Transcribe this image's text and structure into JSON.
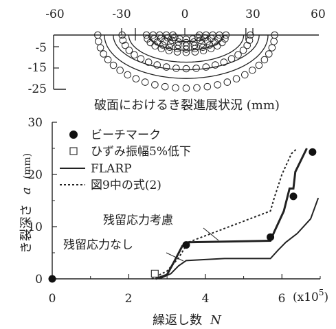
{
  "chart_data": [
    {
      "type": "scatter",
      "xlabel": "",
      "ylabel": "",
      "caption": "破面におけるき裂進展状況 (mm)",
      "xlim": [
        -60,
        60
      ],
      "ylim": [
        -25,
        0
      ],
      "x_ticks": [
        "-60",
        "-30",
        "0",
        "30",
        "60"
      ],
      "y_ticks": [
        "-5",
        "-15",
        "-25"
      ],
      "grid": false,
      "series": [
        {
          "depth": 2,
          "half_width": 6,
          "count": 7
        },
        {
          "depth": 3.5,
          "half_width": 9,
          "count": 9
        },
        {
          "depth": 5,
          "half_width": 12,
          "count": 11
        },
        {
          "depth": 6.5,
          "half_width": 15,
          "count": 13
        },
        {
          "depth": 8,
          "half_width": 18,
          "count": 15
        },
        {
          "depth": 15.5,
          "half_width": 29,
          "count": 21
        },
        {
          "depth": 24.5,
          "half_width": 40,
          "count": 27
        }
      ],
      "solid_curves": [
        {
          "depth": 3,
          "half_width": 10
        },
        {
          "depth": 7,
          "half_width": 17
        },
        {
          "depth": 12.5,
          "half_width": 26
        },
        {
          "depth": 16,
          "half_width": 33
        },
        {
          "depth": 20,
          "half_width": 37
        }
      ],
      "crack_tip_x": [
        -23,
        27
      ]
    },
    {
      "type": "line",
      "xlabel": "繰返し数",
      "xlabel_symbol": "N",
      "ylabel": "き裂深さ",
      "ylabel_symbol": "a",
      "ylabel_unit": "(mm)",
      "x_multiplier": "(x10",
      "x_multiplier_exp": "5",
      "x_multiplier_close": ")",
      "xlim": [
        0,
        7
      ],
      "ylim": [
        0,
        30
      ],
      "x_ticks": [
        "0",
        "2",
        "4",
        "6"
      ],
      "y_ticks": [
        "0",
        "10",
        "20",
        "30"
      ],
      "grid": false,
      "legend": {
        "position": "top-left",
        "items": [
          {
            "label": "ビーチマーク",
            "marker": "filled-circle"
          },
          {
            "label": "ひずみ振幅5%低下",
            "marker": "open-square"
          },
          {
            "label": "FLARP",
            "marker": "solid-line"
          },
          {
            "label": "図9中の式(2)",
            "marker": "dotted-line"
          }
        ]
      },
      "annotations": [
        {
          "text": "残留応力考慮",
          "target": "flarp-with-residual"
        },
        {
          "text": "残留応力なし",
          "target": "flarp-no-residual"
        }
      ],
      "series": [
        {
          "name": "ビーチマーク",
          "style": "filled-circle",
          "x": [
            0,
            3.5,
            5.7,
            6.3,
            6.8
          ],
          "y": [
            0,
            6.5,
            8,
            15.8,
            24.3
          ]
        },
        {
          "name": "ひずみ振幅5%低下",
          "style": "open-square",
          "x": [
            2.68
          ],
          "y": [
            1.0
          ]
        },
        {
          "name": "FLARP",
          "style": "solid-thick",
          "x": [
            2.7,
            3.0,
            3.2,
            3.4,
            3.55,
            5.7,
            5.8,
            6.05,
            6.2,
            6.3,
            6.35,
            6.65
          ],
          "y": [
            0,
            0.8,
            3.5,
            6.3,
            7.0,
            7.3,
            9.0,
            13.0,
            17.3,
            17.3,
            20.5,
            25.0
          ]
        },
        {
          "name": "FLARP",
          "style": "solid-thin",
          "x": [
            2.8,
            3.1,
            3.3,
            3.5,
            4.5,
            5.7,
            5.9,
            6.1,
            6.4,
            6.75,
            6.95
          ],
          "y": [
            0,
            1.0,
            2.5,
            3.5,
            3.9,
            3.9,
            5.5,
            7.0,
            8.7,
            11.5,
            15.5
          ]
        },
        {
          "name": "図9中の式(2)",
          "style": "dotted",
          "x": [
            2.6,
            3.0,
            3.3,
            3.55,
            5.7,
            5.8,
            6.0,
            6.25,
            6.4
          ],
          "y": [
            0,
            1.5,
            4.0,
            7.0,
            13.0,
            15.5,
            20.0,
            24.0,
            25.0
          ]
        }
      ]
    }
  ]
}
